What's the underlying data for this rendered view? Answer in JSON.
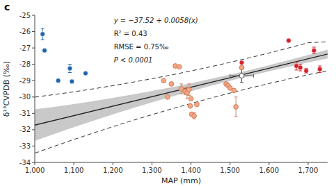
{
  "chart_data": {
    "type": "scatter",
    "title": "c",
    "xlabel": "MAP (mm)",
    "ylabel": "δ¹³CVPDB (‰)",
    "xlim": [
      1000,
      1750
    ],
    "ylim": [
      -34,
      -25
    ],
    "xticks": [
      {
        "value": 1000,
        "label": "1,000"
      },
      {
        "value": 1100,
        "label": "1,100"
      },
      {
        "value": 1200,
        "label": "1,200"
      },
      {
        "value": 1300,
        "label": "1,300"
      },
      {
        "value": 1400,
        "label": "1,400"
      },
      {
        "value": 1500,
        "label": "1,500"
      },
      {
        "value": 1600,
        "label": "1,600"
      },
      {
        "value": 1700,
        "label": "1,700"
      }
    ],
    "yticks": [
      -34,
      -33,
      -32,
      -31,
      -30,
      -29,
      -28,
      -27,
      -26,
      -25
    ],
    "grid": false,
    "annotations": [
      "y = −37.52 + 0.0058(x)",
      "R² = 0.43",
      "RMSE = 0.75‰",
      "P < 0.0001"
    ],
    "series": [
      {
        "type": "band",
        "color": "#888888",
        "x": [
          1000,
          1050,
          1100,
          1150,
          1200,
          1250,
          1300,
          1350,
          1400,
          1450,
          1500,
          1550,
          1600,
          1650,
          1700,
          1750
        ],
        "lower": [
          -32.684,
          -32.26025,
          -31.849,
          -31.45025,
          -31.064,
          -30.69025,
          -30.329,
          -29.98025,
          -29.644,
          -29.32025,
          -29.009,
          -28.71025,
          -28.424,
          -28.15025,
          -27.889,
          -27.64025
        ],
        "upper": [
          -30.756,
          -30.59975,
          -30.431,
          -30.24975,
          -30.056,
          -29.84975,
          -29.631,
          -29.39975,
          -29.156,
          -28.89975,
          -28.631,
          -28.34975,
          -28.056,
          -27.74975,
          -27.431,
          -27.09975
        ]
      },
      {
        "type": "line",
        "color": "#222222",
        "line_style": "solid",
        "x": [
          1000,
          1750
        ],
        "values": [
          -31.72,
          -27.37
        ]
      },
      {
        "type": "line",
        "color": "#333333",
        "line_style": "dashed",
        "x": [
          1000,
          1050,
          1100,
          1150,
          1200,
          1250,
          1300,
          1350,
          1400,
          1450,
          1500,
          1550,
          1600,
          1650,
          1700,
          1750
        ],
        "values": [
          -30.006,
          -29.84975,
          -29.681,
          -29.49975,
          -29.306,
          -29.09975,
          -28.881,
          -28.64975,
          -28.406,
          -28.14975,
          -27.881,
          -27.59975,
          -27.306,
          -26.99975,
          -26.681,
          -26.61975
        ]
      },
      {
        "type": "line",
        "color": "#333333",
        "line_style": "dashed",
        "x": [
          1000,
          1050,
          1100,
          1150,
          1200,
          1250,
          1300,
          1350,
          1400,
          1450,
          1500,
          1550,
          1600,
          1650,
          1700,
          1750
        ],
        "values": [
          -33.434,
          -33.01025,
          -32.599,
          -32.20025,
          -31.814,
          -31.44025,
          -31.079,
          -30.73025,
          -30.394,
          -30.07025,
          -29.759,
          -29.46025,
          -29.174,
          -28.90025,
          -28.639,
          -28.39025
        ]
      },
      {
        "type": "scatter",
        "marker": "circle",
        "color": "#2166ac",
        "x": [
          1020,
          1025,
          1060,
          1090,
          1095,
          1130
        ],
        "values": [
          -26.15,
          -27.15,
          -29.0,
          -28.25,
          -29.05,
          -28.55
        ],
        "errors": [
          0.35,
          0,
          0,
          0.25,
          0,
          0
        ]
      },
      {
        "type": "scatter",
        "marker": "circle",
        "color": "#f4a582",
        "edge_color": "#d08060",
        "x": [
          1330,
          1340,
          1350,
          1360,
          1370,
          1375,
          1385,
          1390,
          1395,
          1398,
          1400,
          1402,
          1408,
          1415,
          1490,
          1495,
          1500,
          1510,
          1515,
          1530
        ],
        "values": [
          -29.0,
          -30.0,
          -29.2,
          -28.1,
          -28.15,
          -29.5,
          -29.65,
          -29.75,
          -29.55,
          -30.55,
          -30.1,
          -31.05,
          -31.15,
          -30.45,
          -29.2,
          -29.3,
          -29.45,
          -29.6,
          -30.6,
          -28.2
        ],
        "errors": [
          0,
          0,
          0,
          0,
          0,
          0.3,
          0.2,
          0.35,
          0.35,
          0,
          0,
          0.12,
          0.18,
          0,
          0,
          0,
          0,
          0,
          0.6,
          0
        ]
      },
      {
        "type": "scatter",
        "marker": "circle",
        "color": "#d6202a",
        "x": [
          1530,
          1650,
          1670,
          1680,
          1695,
          1715,
          1730
        ],
        "values": [
          -27.9,
          -26.55,
          -28.1,
          -28.2,
          -28.4,
          -27.15,
          -28.3
        ],
        "errors": [
          0,
          0,
          0.25,
          0.2,
          0.15,
          0.2,
          0.2
        ]
      },
      {
        "type": "scatter",
        "marker": "circle",
        "color": "#ffffff",
        "edge_color": "#555555",
        "x": [
          1530
        ],
        "values": [
          -28.7
        ],
        "errors": [
          0.4
        ],
        "x_errors": [
          30
        ]
      }
    ]
  }
}
